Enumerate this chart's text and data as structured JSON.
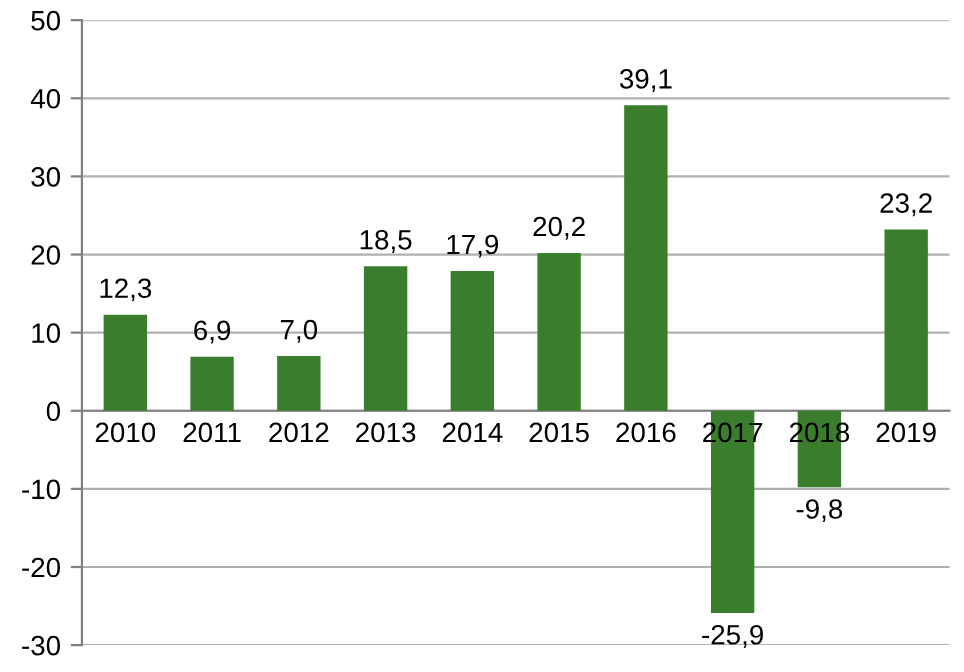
{
  "chart_data": {
    "type": "bar",
    "categories": [
      "2010",
      "2011",
      "2012",
      "2013",
      "2014",
      "2015",
      "2016",
      "2017",
      "2018",
      "2019"
    ],
    "values": [
      12.3,
      6.9,
      7.0,
      18.5,
      17.9,
      20.2,
      39.1,
      -25.9,
      -9.8,
      23.2
    ],
    "value_labels": [
      "12,3",
      "6,9",
      "7,0",
      "18,5",
      "17,9",
      "20,2",
      "39,1",
      "-25,9",
      "-9,8",
      "23,2"
    ],
    "color": "#3a7d2c",
    "ylim": [
      -30,
      50
    ],
    "yticks": [
      -30,
      -20,
      -10,
      0,
      10,
      20,
      30,
      40,
      50
    ],
    "grid": "y",
    "legend": false
  }
}
